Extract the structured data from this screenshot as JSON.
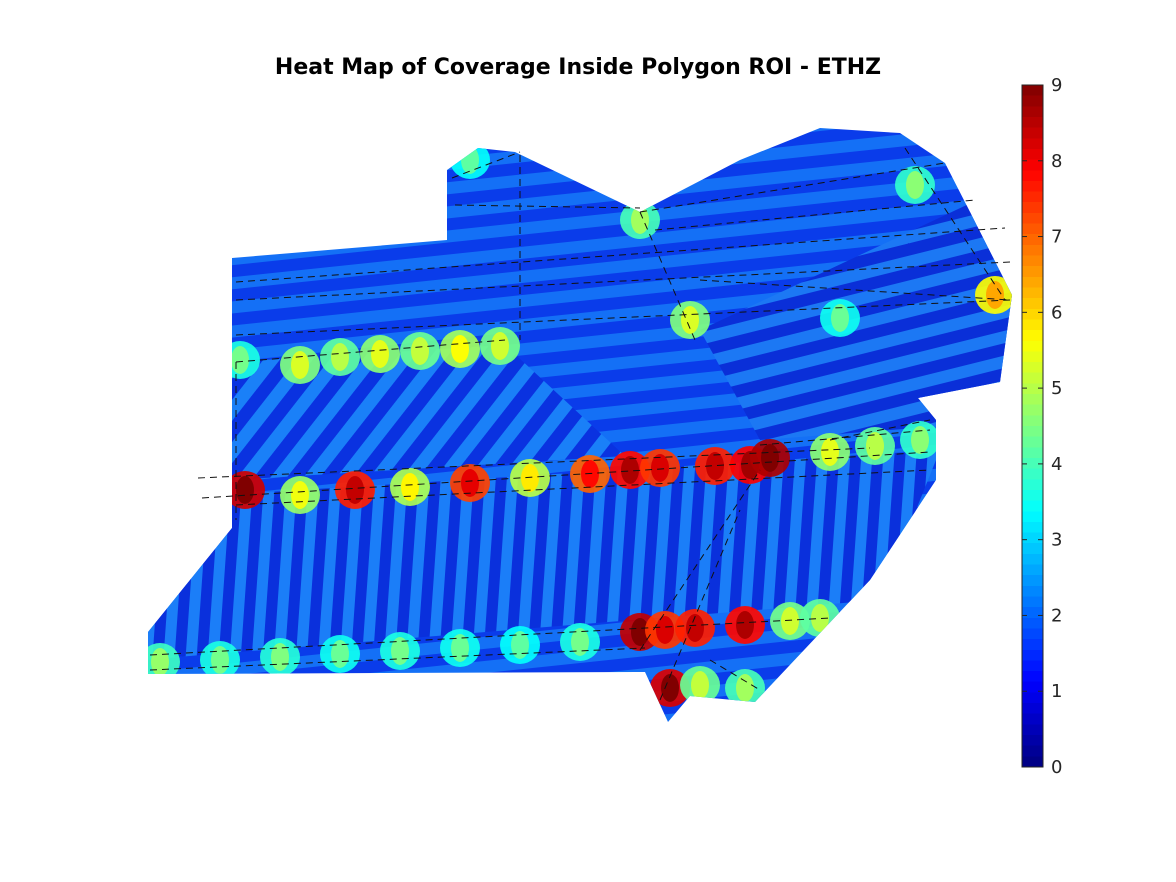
{
  "chart_data": {
    "type": "heatmap",
    "title": "Heat Map of Coverage Inside Polygon ROI - ETHZ",
    "xlabel": "",
    "ylabel": "",
    "colormap": "jet",
    "colorbar": {
      "min": 0,
      "max": 9,
      "ticks": [
        0,
        1,
        2,
        3,
        4,
        5,
        6,
        7,
        8,
        9
      ],
      "tick_labels": [
        "0",
        "1",
        "2",
        "3",
        "4",
        "5",
        "6",
        "7",
        "8",
        "9"
      ],
      "placement": "right"
    },
    "background_level": 1.5,
    "grid": false,
    "axes_visible": false
  }
}
